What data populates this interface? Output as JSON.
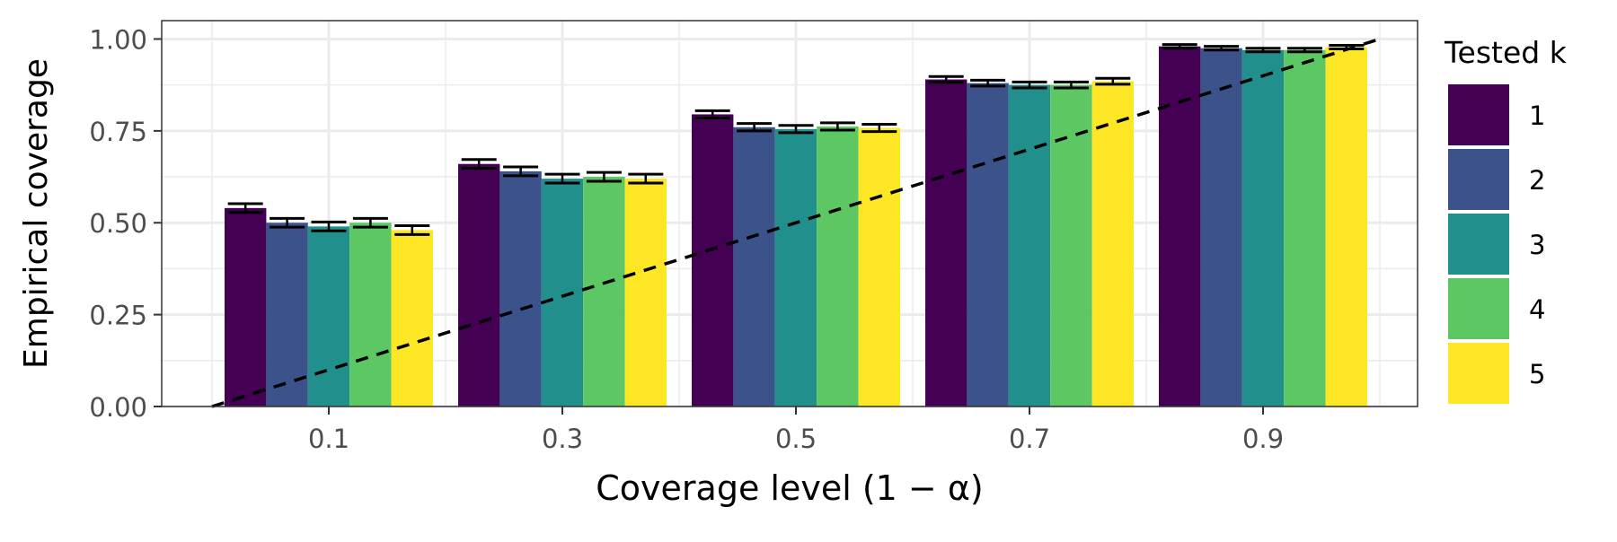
{
  "chart_data": {
    "type": "bar",
    "title": "",
    "xlabel": "Coverage level (1 − α)",
    "ylabel": "Empirical coverage",
    "categories": [
      "0.1",
      "0.3",
      "0.5",
      "0.7",
      "0.9"
    ],
    "ylim": [
      0,
      1.05
    ],
    "yticks": [
      "0.00",
      "0.25",
      "0.50",
      "0.75",
      "1.00"
    ],
    "grid": true,
    "legend": {
      "title": "Tested k",
      "position": "right"
    },
    "reference_line": {
      "type": "diagonal",
      "style": "dashed",
      "from": [
        0.0,
        0.0
      ],
      "to": [
        1.0,
        1.0
      ]
    },
    "series": [
      {
        "name": "1",
        "color": "#440154",
        "values": [
          0.54,
          0.66,
          0.795,
          0.89,
          0.98
        ],
        "error": [
          0.012,
          0.012,
          0.01,
          0.008,
          0.005
        ]
      },
      {
        "name": "2",
        "color": "#3B528B",
        "values": [
          0.5,
          0.64,
          0.76,
          0.88,
          0.975
        ],
        "error": [
          0.012,
          0.012,
          0.01,
          0.008,
          0.005
        ]
      },
      {
        "name": "3",
        "color": "#21908C",
        "values": [
          0.49,
          0.62,
          0.755,
          0.875,
          0.97
        ],
        "error": [
          0.012,
          0.012,
          0.01,
          0.008,
          0.005
        ]
      },
      {
        "name": "4",
        "color": "#5DC863",
        "values": [
          0.5,
          0.625,
          0.762,
          0.875,
          0.97
        ],
        "error": [
          0.012,
          0.012,
          0.01,
          0.008,
          0.005
        ]
      },
      {
        "name": "5",
        "color": "#FDE725",
        "values": [
          0.48,
          0.62,
          0.758,
          0.885,
          0.978
        ],
        "error": [
          0.012,
          0.012,
          0.01,
          0.008,
          0.005
        ]
      }
    ]
  }
}
